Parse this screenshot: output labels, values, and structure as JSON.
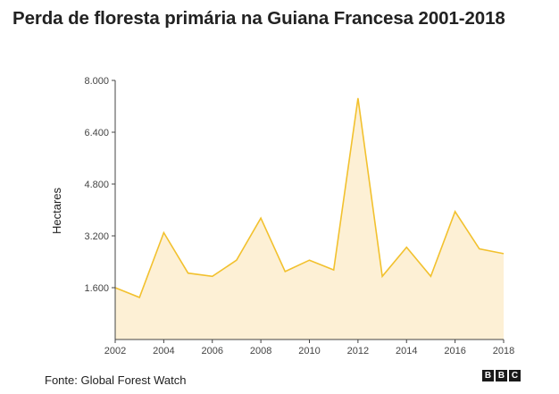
{
  "title": "Perda de floresta primária na Guiana Francesa 2001-2018",
  "source": "Fonte: Global Forest Watch",
  "logo": {
    "text": "BBC",
    "letters": [
      "B",
      "B",
      "C"
    ]
  },
  "colors": {
    "line": "#f2c12e",
    "fill": "#fdf0d5",
    "axis": "#444444"
  },
  "chart_data": {
    "type": "area",
    "title": "Perda de floresta primária na Guiana Francesa 2001-2018",
    "xlabel": "",
    "ylabel": "Hectares",
    "x": [
      2002,
      2003,
      2004,
      2005,
      2006,
      2007,
      2008,
      2009,
      2010,
      2011,
      2012,
      2013,
      2014,
      2015,
      2016,
      2017,
      2018
    ],
    "series": [
      {
        "values": [
          1600,
          1300,
          3300,
          2050,
          1950,
          2450,
          3750,
          2100,
          2450,
          2150,
          7450,
          1950,
          2850,
          1950,
          3950,
          2800,
          2650
        ]
      }
    ],
    "xlim": [
      2002,
      2018
    ],
    "ylim": [
      0,
      8000
    ],
    "yticks": [
      1600,
      3200,
      4800,
      6400,
      8000
    ],
    "ytick_labels": [
      "1.600",
      "3.200",
      "4.800",
      "6.400",
      "8.000"
    ],
    "xticks": [
      2002,
      2004,
      2006,
      2008,
      2010,
      2012,
      2014,
      2016,
      2018
    ],
    "xtick_labels": [
      "2002",
      "2004",
      "2006",
      "2008",
      "2010",
      "2012",
      "2014",
      "2016",
      "2018"
    ],
    "grid": false,
    "legend": "none"
  }
}
